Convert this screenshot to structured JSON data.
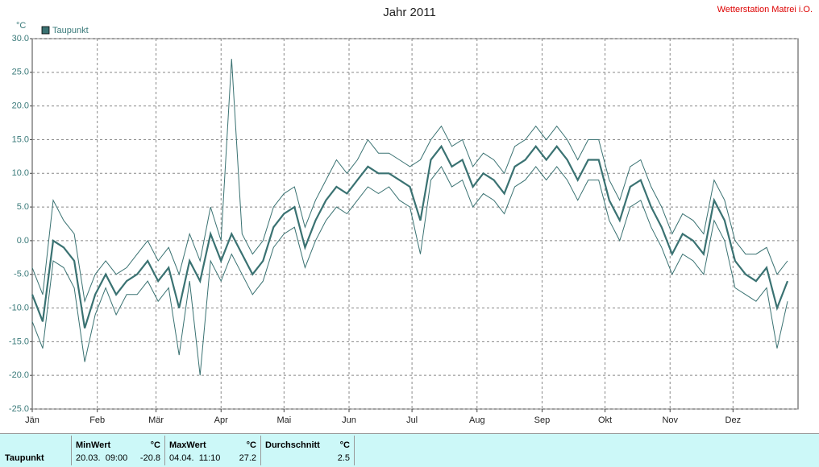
{
  "chart_data": {
    "type": "line",
    "title": "Jahr 2011",
    "station": "Wetterstation Matrei i.O.",
    "y_unit": "°C",
    "x": [
      1,
      6,
      11,
      16,
      21,
      26,
      31,
      36,
      41,
      46,
      51,
      56,
      61,
      66,
      71,
      76,
      81,
      86,
      91,
      96,
      101,
      106,
      111,
      116,
      121,
      126,
      131,
      136,
      141,
      146,
      151,
      156,
      161,
      166,
      171,
      176,
      181,
      186,
      191,
      196,
      201,
      206,
      211,
      216,
      221,
      226,
      231,
      236,
      241,
      246,
      251,
      256,
      261,
      266,
      271,
      276,
      281,
      286,
      291,
      296,
      301,
      306,
      311,
      316,
      321,
      326,
      331,
      336,
      341,
      346,
      351,
      356,
      361
    ],
    "series": [
      {
        "name": "Taupunkt",
        "color": "#3a7272",
        "line_width": 2.2,
        "values": [
          -8,
          -12,
          0,
          -1,
          -3,
          -13,
          -8,
          -5,
          -8,
          -6,
          -5,
          -3,
          -6,
          -4,
          -10,
          -3,
          -6,
          1,
          -3,
          1,
          -2,
          -5,
          -3,
          2,
          4,
          5,
          -1,
          3,
          6,
          8,
          7,
          9,
          11,
          10,
          10,
          9,
          8,
          3,
          12,
          14,
          11,
          12,
          8,
          10,
          9,
          7,
          11,
          12,
          14,
          12,
          14,
          12,
          9,
          12,
          12,
          6,
          3,
          8,
          9,
          5,
          2,
          -2,
          1,
          0,
          -2,
          6,
          3,
          -3,
          -5,
          -6,
          -4,
          -10,
          -6
        ]
      },
      {
        "color": "#3a7272",
        "line_width": 1,
        "values": [
          -12,
          -16,
          -3,
          -4,
          -7,
          -18,
          -11,
          -7,
          -11,
          -8,
          -8,
          -6,
          -9,
          -7,
          -17,
          -6,
          -20,
          -3,
          -6,
          -2,
          -5,
          -8,
          -6,
          -1,
          1,
          2,
          -4,
          0,
          3,
          5,
          4,
          6,
          8,
          7,
          8,
          6,
          5,
          -2,
          9,
          11,
          8,
          9,
          5,
          7,
          6,
          4,
          8,
          9,
          11,
          9,
          11,
          9,
          6,
          9,
          9,
          3,
          0,
          5,
          6,
          2,
          -1,
          -5,
          -2,
          -3,
          -5,
          3,
          0,
          -7,
          -8,
          -9,
          -7,
          -16,
          -9
        ]
      },
      {
        "color": "#3a7272",
        "line_width": 1,
        "values": [
          -4,
          -8,
          6,
          3,
          1,
          -9,
          -5,
          -3,
          -5,
          -4,
          -2,
          0,
          -3,
          -1,
          -5,
          1,
          -3,
          5,
          0,
          27,
          1,
          -2,
          0,
          5,
          7,
          8,
          2,
          6,
          9,
          12,
          10,
          12,
          15,
          13,
          13,
          12,
          11,
          12,
          15,
          17,
          14,
          15,
          11,
          13,
          12,
          10,
          14,
          15,
          17,
          15,
          17,
          15,
          12,
          15,
          15,
          9,
          6,
          11,
          12,
          8,
          5,
          1,
          4,
          3,
          1,
          9,
          6,
          0,
          -2,
          -2,
          -1,
          -5,
          -3
        ]
      }
    ],
    "xlim": [
      1,
      366
    ],
    "xticks": [
      {
        "value": 1,
        "label": "Jän"
      },
      {
        "value": 32,
        "label": "Feb"
      },
      {
        "value": 60,
        "label": "Mär"
      },
      {
        "value": 91,
        "label": "Apr"
      },
      {
        "value": 121,
        "label": "Mai"
      },
      {
        "value": 152,
        "label": "Jun"
      },
      {
        "value": 182,
        "label": "Jul"
      },
      {
        "value": 213,
        "label": "Aug"
      },
      {
        "value": 244,
        "label": "Sep"
      },
      {
        "value": 274,
        "label": "Okt"
      },
      {
        "value": 305,
        "label": "Nov"
      },
      {
        "value": 335,
        "label": "Dez"
      }
    ],
    "ylim": [
      -25,
      30
    ],
    "yticks": [
      {
        "value": 30,
        "label": "30.0"
      },
      {
        "value": 25,
        "label": "25.0"
      },
      {
        "value": 20,
        "label": "20.0"
      },
      {
        "value": 15,
        "label": "15.0"
      },
      {
        "value": 10,
        "label": "10.0"
      },
      {
        "value": 5,
        "label": "5.0"
      },
      {
        "value": 0,
        "label": "0.0"
      },
      {
        "value": -5,
        "label": "-5.0"
      },
      {
        "value": -10,
        "label": "-10.0"
      },
      {
        "value": -15,
        "label": "-15.0"
      },
      {
        "value": -20,
        "label": "-20.0"
      },
      {
        "value": -25,
        "label": "-25.0"
      }
    ],
    "grid": true,
    "legend": "top-left"
  },
  "summary": {
    "row_label": "Taupunkt",
    "min": {
      "header": "MinWert",
      "unit": "°C",
      "time": "20.03.  09:00",
      "value": -20.8
    },
    "max": {
      "header": "MaxWert",
      "unit": "°C",
      "time": "04.04.  11:10",
      "value": 27.2
    },
    "avg": {
      "header": "Durchschnitt",
      "unit": "°C",
      "value": 2.5
    }
  }
}
